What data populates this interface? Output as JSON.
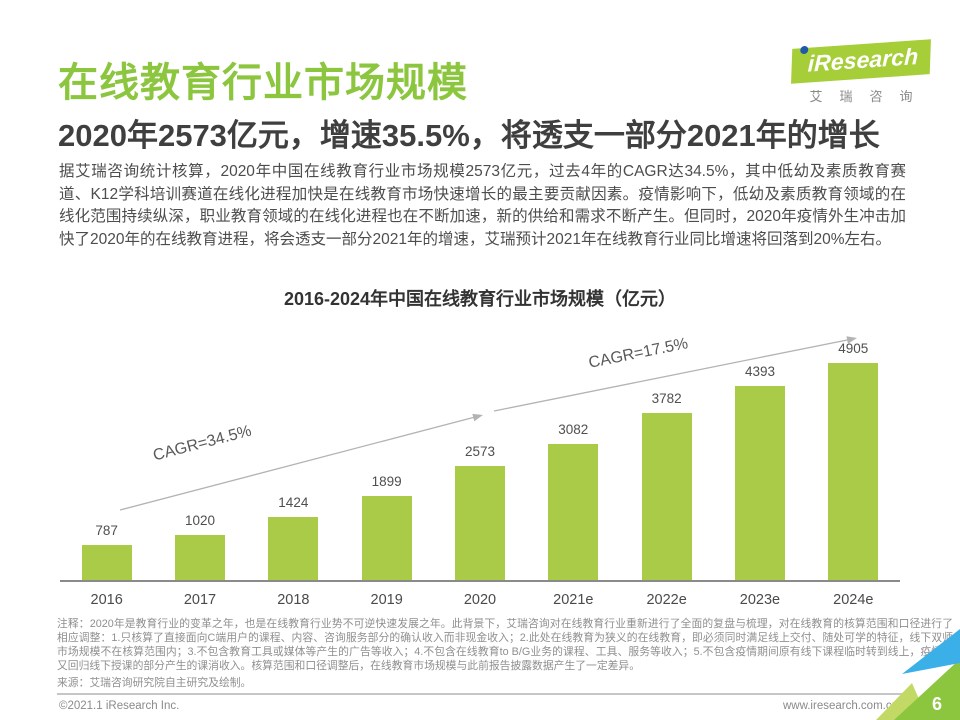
{
  "header": {
    "title": "在线教育行业市场规模",
    "logo": {
      "brand": "iResearch",
      "brand_cn": "艾瑞咨询",
      "green": "#A6CE39",
      "dot_blue": "#1E5AA8"
    }
  },
  "subtitle": "2020年2573亿元，增速35.5%，将透支一部分2021年的增长",
  "body_paragraph": "据艾瑞咨询统计核算，2020年中国在线教育行业市场规模2573亿元，过去4年的CAGR达34.5%，其中低幼及素质教育赛道、K12学科培训赛道在线化进程加快是在线教育市场快速增长的最主要贡献因素。疫情影响下，低幼及素质教育领域的在线化范围持续纵深，职业教育领域的在线化进程也在不断加速，新的供给和需求不断产生。但同时，2020年疫情外生冲击加快了2020年的在线教育进程，将会透支一部分2021年的增速，艾瑞预计2021年在线教育行业同比增速将回落到20%左右。",
  "chart_data": {
    "type": "bar",
    "title": "2016-2024年中国在线教育行业市场规模（亿元）",
    "categories": [
      "2016",
      "2017",
      "2018",
      "2019",
      "2020",
      "2021e",
      "2022e",
      "2023e",
      "2024e"
    ],
    "values": [
      787,
      1020,
      1424,
      1899,
      2573,
      3082,
      3782,
      4393,
      4905
    ],
    "unit": "亿元",
    "ylim": [
      0,
      4905
    ],
    "grid": "off",
    "bar_color": "#A9CB48",
    "annotations": [
      {
        "label": "CAGR=34.5%",
        "span": "2016-2020"
      },
      {
        "label": "CAGR=17.5%",
        "span": "2020-2024e"
      }
    ]
  },
  "notes": {
    "text": "注释：2020年是教育行业的变革之年，也是在线教育行业势不可逆快速发展之年。此背景下，艾瑞咨询对在线教育行业重新进行了全面的复盘与梳理，对在线教育的核算范围和口径进行了相应调整：1.只核算了直接面向C端用户的课程、内容、咨询服务部分的确认收入而非现金收入；2.此处在线教育为狭义的在线教育，即必须同时满足线上交付、随处可学的特征，线下双师市场规模不在核算范围内；3.不包含教育工具或媒体等产生的广告等收入；4.不包含在线教育to B/G业务的课程、工具、服务等收入；5.不包含疫情期间原有线下课程临时转到线上，疫情后又回归线下授课的部分产生的课消收入。核算范围和口径调整后，在线教育市场规模与此前报告披露数据产生了一定差异。",
    "source": "来源：艾瑞咨询研究院自主研究及绘制。"
  },
  "footer": {
    "copyright": "©2021.1 iResearch Inc.",
    "website": "www.iresearch.com.cn",
    "page_number": "6"
  }
}
